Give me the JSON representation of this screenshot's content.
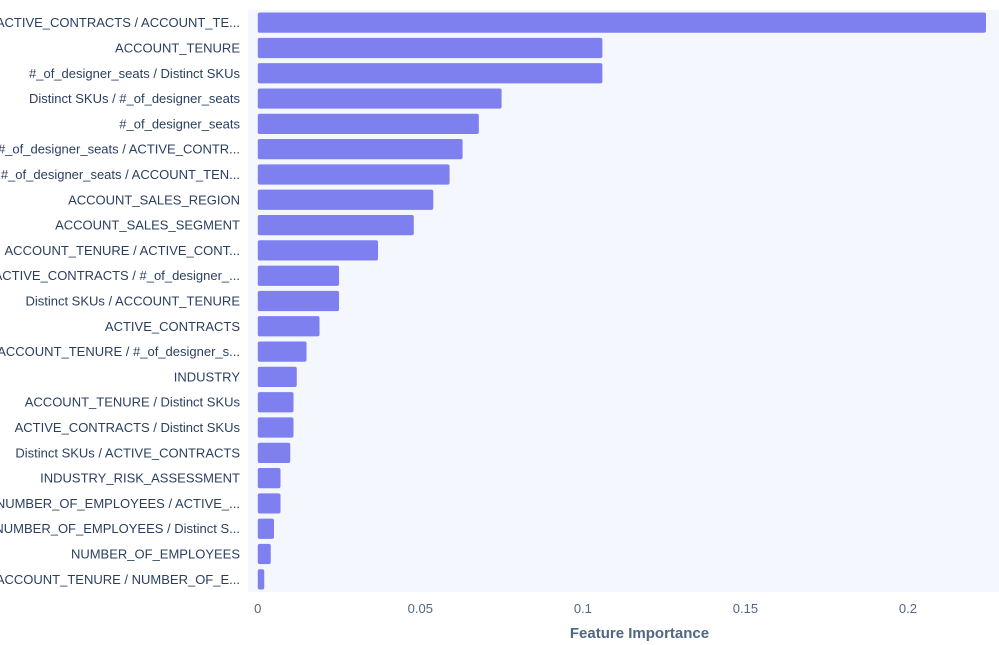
{
  "chart_data": {
    "type": "bar",
    "orientation": "horizontal",
    "xlabel": "Feature Importance",
    "ylabel": "",
    "xlim": [
      -0.003,
      0.228
    ],
    "x_ticks": [
      0,
      0.05,
      0.1,
      0.15,
      0.2
    ],
    "x_tick_labels": [
      "0",
      "0.05",
      "0.1",
      "0.15",
      "0.2"
    ],
    "grid": false,
    "plot_background": "#f5f7ff",
    "bar_color": "#7f80ef",
    "categories": [
      "ACTIVE_CONTRACTS / ACCOUNT_TE...",
      "ACCOUNT_TENURE",
      "#_of_designer_seats / Distinct SKUs",
      "Distinct SKUs / #_of_designer_seats",
      "#_of_designer_seats",
      "#_of_designer_seats / ACTIVE_CONTR...",
      "#_of_designer_seats / ACCOUNT_TEN...",
      "ACCOUNT_SALES_REGION",
      "ACCOUNT_SALES_SEGMENT",
      "ACCOUNT_TENURE / ACTIVE_CONT...",
      "ACTIVE_CONTRACTS / #_of_designer_...",
      "Distinct SKUs / ACCOUNT_TENURE",
      "ACTIVE_CONTRACTS",
      "ACCOUNT_TENURE / #_of_designer_s...",
      "INDUSTRY",
      "ACCOUNT_TENURE / Distinct SKUs",
      "ACTIVE_CONTRACTS / Distinct SKUs",
      "Distinct SKUs / ACTIVE_CONTRACTS",
      "INDUSTRY_RISK_ASSESSMENT",
      "NUMBER_OF_EMPLOYEES / ACTIVE_...",
      "NUMBER_OF_EMPLOYEES / Distinct S...",
      "NUMBER_OF_EMPLOYEES",
      "ACCOUNT_TENURE / NUMBER_OF_E..."
    ],
    "values": [
      0.224,
      0.106,
      0.106,
      0.075,
      0.068,
      0.063,
      0.059,
      0.054,
      0.048,
      0.037,
      0.025,
      0.025,
      0.019,
      0.015,
      0.012,
      0.011,
      0.011,
      0.01,
      0.007,
      0.007,
      0.005,
      0.004,
      0.002
    ]
  }
}
